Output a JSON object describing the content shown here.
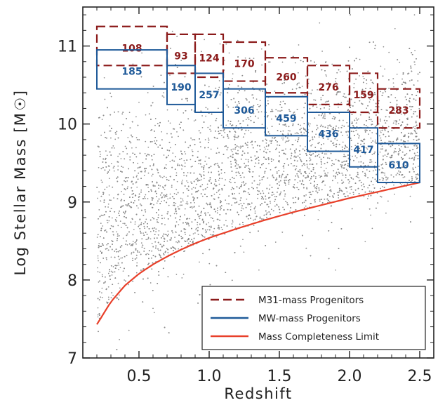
{
  "chart_data": {
    "type": "scatter",
    "xlabel": "Redshift",
    "ylabel": "Log Stellar Mass [M☉]",
    "ylabel_main": "Log Stellar Mass [M",
    "ylabel_unit_close": "]",
    "xlim": [
      0.1,
      2.6
    ],
    "ylim": [
      7.0,
      11.5
    ],
    "x_ticks": [
      {
        "value": 0.5,
        "label": "0.5"
      },
      {
        "value": 1.0,
        "label": "1.0"
      },
      {
        "value": 1.5,
        "label": "1.5"
      },
      {
        "value": 2.0,
        "label": "2.0"
      },
      {
        "value": 2.5,
        "label": "2.5"
      }
    ],
    "y_ticks": [
      {
        "value": 7,
        "label": "7"
      },
      {
        "value": 8,
        "label": "8"
      },
      {
        "value": 9,
        "label": "9"
      },
      {
        "value": 10,
        "label": "10"
      },
      {
        "value": 11,
        "label": "11"
      }
    ],
    "colors": {
      "points": "#8c8c8c",
      "m31": "#8b1a1a",
      "mw": "#1f5a99",
      "completeness": "#e8402a",
      "axes": "#222222"
    },
    "completeness_limit": {
      "name": "Mass Completeness Limit",
      "x": [
        0.2,
        0.3,
        0.4,
        0.5,
        0.6,
        0.7,
        0.8,
        0.9,
        1.0,
        1.2,
        1.4,
        1.6,
        1.8,
        2.0,
        2.2,
        2.4,
        2.5
      ],
      "y": [
        7.43,
        7.72,
        7.93,
        8.08,
        8.2,
        8.3,
        8.39,
        8.47,
        8.54,
        8.66,
        8.77,
        8.87,
        8.96,
        9.05,
        9.13,
        9.21,
        9.25
      ]
    },
    "m31_boxes": {
      "name": "M31-mass Progenitors",
      "bins": [
        {
          "z_min": 0.2,
          "z_max": 0.7,
          "mass_min": 10.75,
          "mass_max": 11.25,
          "count": "108"
        },
        {
          "z_min": 0.7,
          "z_max": 0.9,
          "mass_min": 10.65,
          "mass_max": 11.15,
          "count": "93"
        },
        {
          "z_min": 0.9,
          "z_max": 1.1,
          "mass_min": 10.6,
          "mass_max": 11.15,
          "count": "124"
        },
        {
          "z_min": 1.1,
          "z_max": 1.4,
          "mass_min": 10.55,
          "mass_max": 11.05,
          "count": "170"
        },
        {
          "z_min": 1.4,
          "z_max": 1.7,
          "mass_min": 10.4,
          "mass_max": 10.85,
          "count": "260"
        },
        {
          "z_min": 1.7,
          "z_max": 2.0,
          "mass_min": 10.25,
          "mass_max": 10.75,
          "count": "276"
        },
        {
          "z_min": 2.0,
          "z_max": 2.2,
          "mass_min": 10.15,
          "mass_max": 10.65,
          "count": "159"
        },
        {
          "z_min": 2.2,
          "z_max": 2.5,
          "mass_min": 9.95,
          "mass_max": 10.45,
          "count": "283"
        }
      ]
    },
    "mw_boxes": {
      "name": "MW-mass Progenitors",
      "bins": [
        {
          "z_min": 0.2,
          "z_max": 0.7,
          "mass_min": 10.45,
          "mass_max": 10.95,
          "count": "185"
        },
        {
          "z_min": 0.7,
          "z_max": 0.9,
          "mass_min": 10.25,
          "mass_max": 10.75,
          "count": "190"
        },
        {
          "z_min": 0.9,
          "z_max": 1.1,
          "mass_min": 10.15,
          "mass_max": 10.65,
          "count": "257"
        },
        {
          "z_min": 1.1,
          "z_max": 1.4,
          "mass_min": 9.95,
          "mass_max": 10.45,
          "count": "306"
        },
        {
          "z_min": 1.4,
          "z_max": 1.7,
          "mass_min": 9.85,
          "mass_max": 10.35,
          "count": "459"
        },
        {
          "z_min": 1.7,
          "z_max": 2.0,
          "mass_min": 9.65,
          "mass_max": 10.15,
          "count": "436"
        },
        {
          "z_min": 2.0,
          "z_max": 2.2,
          "mass_min": 9.45,
          "mass_max": 9.95,
          "count": "417"
        },
        {
          "z_min": 2.2,
          "z_max": 2.5,
          "mass_min": 9.25,
          "mass_max": 9.75,
          "count": "610"
        }
      ]
    },
    "legend": {
      "position": "lower-right",
      "entries": [
        {
          "label": "M31-mass Progenitors",
          "style": "dashed",
          "color": "#8b1a1a"
        },
        {
          "label": "MW-mass Progenitors",
          "style": "solid",
          "color": "#1f5a99"
        },
        {
          "label": "Mass Completeness Limit",
          "style": "solid",
          "color": "#e8402a"
        }
      ]
    },
    "scatter_distribution": {
      "description": "dense field of galaxies, z 0.2-2.5, mass from completeness limit up to ~11.5",
      "z_range": [
        0.2,
        2.5
      ]
    }
  }
}
